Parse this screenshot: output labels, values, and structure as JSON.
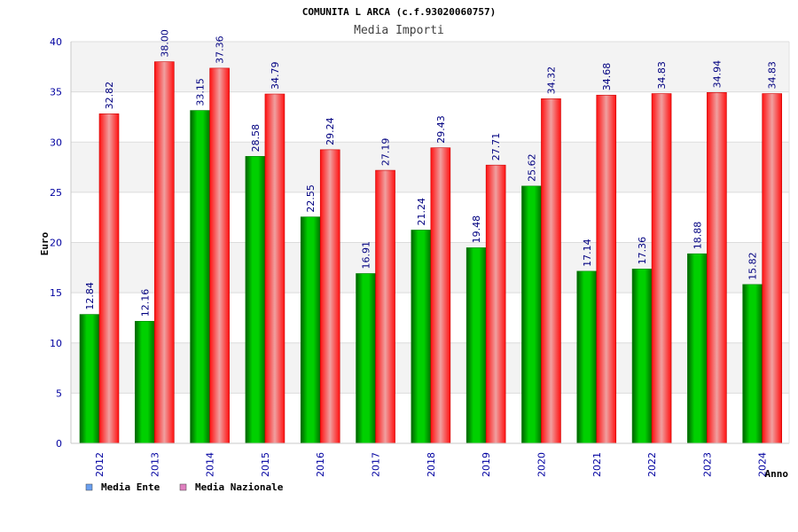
{
  "chart_data": {
    "type": "bar",
    "title": "COMUNITA L ARCA (c.f.93020060757)",
    "subtitle": "Media Importi",
    "xlabel": "Anno",
    "ylabel": "Euro",
    "ylim": [
      0,
      40
    ],
    "yticks": [
      "0",
      "5",
      "10",
      "15",
      "20",
      "25",
      "30",
      "35",
      "40"
    ],
    "categories": [
      "2012",
      "2013",
      "2014",
      "2015",
      "2016",
      "2017",
      "2018",
      "2019",
      "2020",
      "2021",
      "2022",
      "2023",
      "2024"
    ],
    "series": [
      {
        "name": "Media Ente",
        "color": "#00c000",
        "values": [
          12.84,
          12.16,
          33.15,
          28.58,
          22.55,
          16.91,
          21.24,
          19.48,
          25.62,
          17.14,
          17.36,
          18.88,
          15.82
        ],
        "labels": [
          "12.84",
          "12.16",
          "33.15",
          "28.58",
          "22.55",
          "16.91",
          "21.24",
          "19.48",
          "25.62",
          "17.14",
          "17.36",
          "18.88",
          "15.82"
        ]
      },
      {
        "name": "Media Nazionale",
        "color": "#ff0000",
        "values": [
          32.82,
          38.0,
          37.36,
          34.79,
          29.24,
          27.19,
          29.43,
          27.71,
          34.32,
          34.68,
          34.83,
          34.94,
          34.83
        ],
        "labels": [
          "32.82",
          "38.00",
          "37.36",
          "34.79",
          "29.24",
          "27.19",
          "29.43",
          "27.71",
          "34.32",
          "34.68",
          "34.83",
          "34.94",
          "34.83"
        ]
      }
    ],
    "legend_position": "bottom-left",
    "legend_swatch_colors": [
      "#6aa0f0",
      "#e080c0"
    ],
    "grid": true
  }
}
